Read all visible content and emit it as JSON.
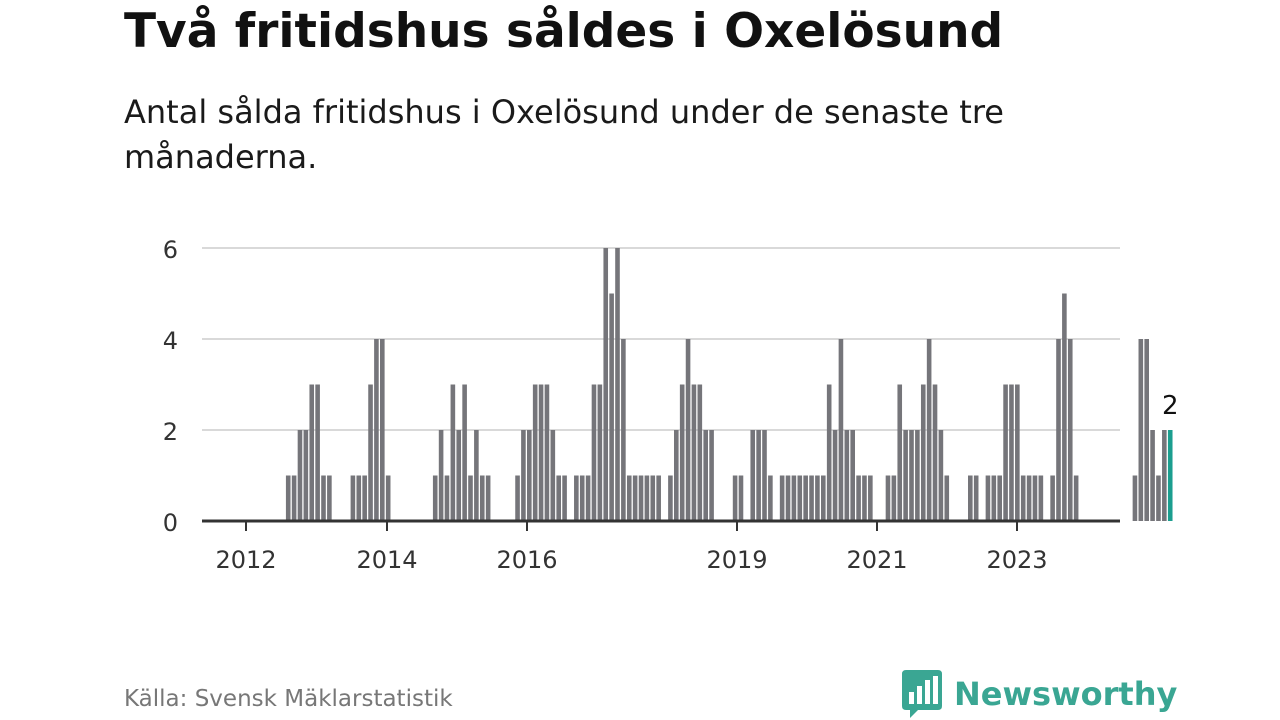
{
  "header": {
    "title": "Två fritidshus såldes i Oxelösund",
    "subtitle": "Antal sålda fritidshus i Oxelösund under de senaste tre månaderna."
  },
  "footer": {
    "source": "Källa: Svensk Mäklarstatistik",
    "brand": "Newsworthy"
  },
  "colors": {
    "bar": "#75757a",
    "highlight": "#1b9e8f",
    "grid": "#d9d9d9",
    "axis": "#333333",
    "brand": "#3aa693"
  },
  "chart_data": {
    "type": "bar",
    "x_tick_labels": [
      "2012",
      "2014",
      "2016",
      "2019",
      "2021",
      "2023"
    ],
    "y_ticks": [
      0,
      2,
      4,
      6
    ],
    "ylim": [
      0,
      6
    ],
    "grid": true,
    "annotation": "2",
    "series": [
      {
        "values": [
          0,
          0,
          0,
          0,
          0,
          0,
          0,
          0,
          0,
          1,
          1,
          2,
          2,
          3,
          3,
          1,
          1,
          0,
          0,
          0,
          1,
          1,
          1,
          3,
          4,
          4,
          1,
          0,
          0,
          0,
          0,
          0,
          0,
          0,
          1,
          2,
          1,
          3,
          2,
          3,
          1,
          2,
          1,
          1,
          0,
          0,
          0,
          0,
          1,
          2,
          2,
          3,
          3,
          3,
          2,
          1,
          1,
          0,
          1,
          1,
          1,
          3,
          3,
          6,
          5,
          6,
          4,
          1,
          1,
          1,
          1,
          1,
          1,
          0,
          1,
          2,
          3,
          4,
          3,
          3,
          2,
          2,
          0,
          0,
          0,
          1,
          1,
          0,
          2,
          2,
          2,
          1,
          0,
          1,
          1,
          1,
          1,
          1,
          1,
          1,
          1,
          3,
          2,
          4,
          2,
          2,
          1,
          1,
          1,
          0,
          0,
          1,
          1,
          3,
          2,
          2,
          2,
          3,
          4,
          3,
          2,
          1,
          0,
          0,
          0,
          1,
          1,
          0,
          1,
          1,
          1,
          3,
          3,
          3,
          1,
          1,
          1,
          1,
          0,
          1,
          4,
          5,
          4,
          1,
          0,
          0,
          0,
          0,
          0,
          0,
          0,
          0,
          0,
          1,
          4,
          4,
          2,
          1,
          2,
          2
        ]
      }
    ]
  }
}
